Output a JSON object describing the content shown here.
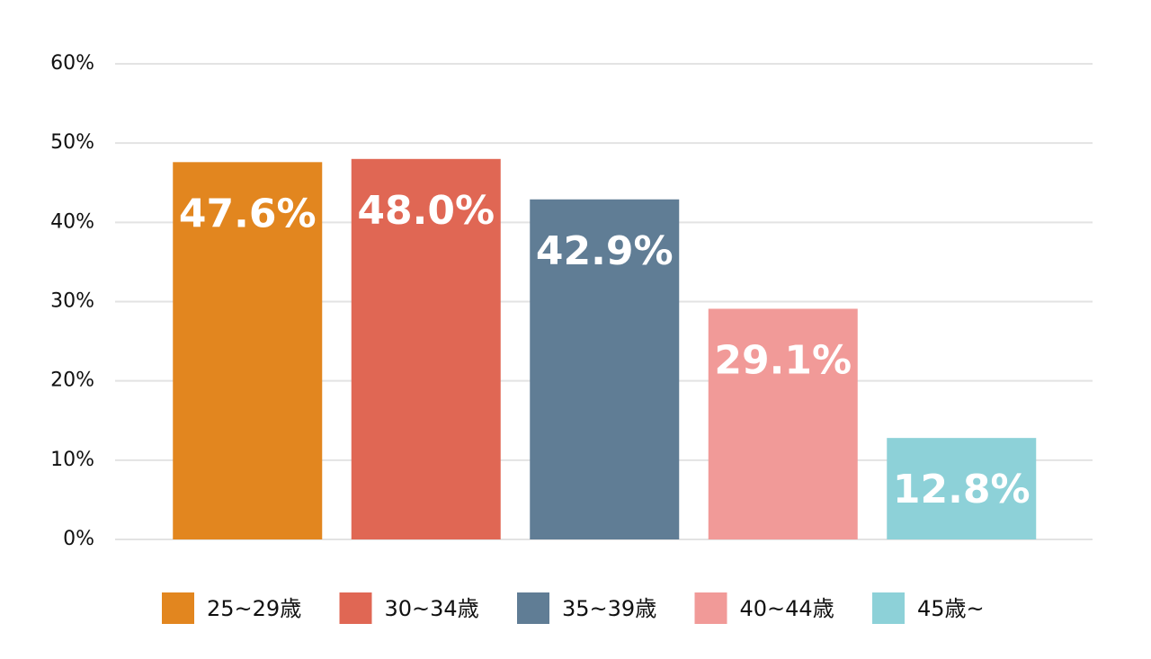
{
  "chart_data": {
    "type": "bar",
    "series": [
      {
        "name": "25~29歳",
        "color": "#e2861f",
        "values": [
          47.6
        ],
        "value_labels": [
          "47.6%"
        ]
      },
      {
        "name": "30~34歳",
        "color": "#e06754",
        "values": [
          48.0
        ],
        "value_labels": [
          "48.0%"
        ]
      },
      {
        "name": "35~39歳",
        "color": "#607d95",
        "values": [
          42.9
        ],
        "value_labels": [
          "42.9%"
        ]
      },
      {
        "name": "40~44歳",
        "color": "#f19a98",
        "values": [
          29.1
        ],
        "value_labels": [
          "29.1%"
        ]
      },
      {
        "name": "45歳~",
        "color": "#8dd1d8",
        "values": [
          12.8
        ],
        "value_labels": [
          "12.8%"
        ]
      }
    ],
    "ylim": [
      0,
      60
    ],
    "yticks": [
      {
        "value": 0,
        "label": "0%"
      },
      {
        "value": 10,
        "label": "10%"
      },
      {
        "value": 20,
        "label": "20%"
      },
      {
        "value": 30,
        "label": "30%"
      },
      {
        "value": 40,
        "label": "40%"
      },
      {
        "value": 50,
        "label": "50%"
      },
      {
        "value": 60,
        "label": "60%"
      }
    ],
    "grid": true,
    "legend": "bottom"
  }
}
